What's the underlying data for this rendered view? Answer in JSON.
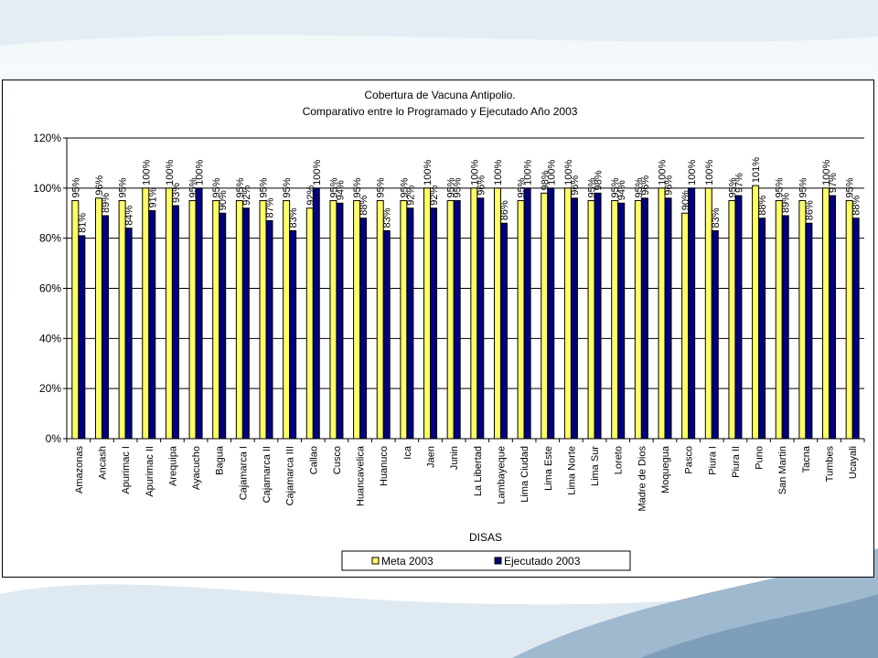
{
  "colors": {
    "meta": "#ffff66",
    "ejecutado": "#000080"
  },
  "chart_data": {
    "type": "bar",
    "title": "Cobertura de Vacuna Antipolio.",
    "subtitle": "Comparativo entre lo Programado y Ejecutado Año 2003",
    "xlabel": "DISAS",
    "ylabel": "",
    "ylim": [
      0,
      120
    ],
    "yticks": [
      "0%",
      "20%",
      "40%",
      "60%",
      "80%",
      "100%",
      "120%"
    ],
    "grid": true,
    "legend_position": "bottom",
    "categories": [
      "Amazonas",
      "Ancash",
      "Apurimac I",
      "Apurimac II",
      "Arequipa",
      "Ayacucho",
      "Bagua",
      "Cajamarca I",
      "Cajamarca II",
      "Cajamarca III",
      "Callao",
      "Cusco",
      "Huancavelica",
      "Huanuco",
      "Ica",
      "Jaen",
      "Junin",
      "La Libertad",
      "Lambayeque",
      "Lima Ciudad",
      "Lima Este",
      "Lima Norte",
      "Lima Sur",
      "Loreto",
      "Madre de Dios",
      "Moquegua",
      "Pasco",
      "Piura I",
      "Piura II",
      "Puno",
      "San Martin",
      "Tacna",
      "Tumbes",
      "Ucayali"
    ],
    "series": [
      {
        "name": "Meta 2003",
        "values": [
          95,
          96,
          95,
          100,
          100,
          95,
          95,
          95,
          95,
          95,
          92,
          95,
          95,
          95,
          95,
          100,
          95,
          100,
          100,
          95,
          98,
          100,
          95,
          95,
          95,
          100,
          90,
          100,
          95,
          101,
          95,
          95,
          100,
          95
        ],
        "labels": [
          "95%",
          "96%",
          "95%",
          "100%",
          "100%",
          "95%",
          "95%",
          "95%",
          "95%",
          "95%",
          "92%",
          "95%",
          "95%",
          "95%",
          "95%",
          "100%",
          "95%",
          "100%",
          "100%",
          "95%",
          "98%",
          "100%",
          "95%",
          "95%",
          "95%",
          "100%",
          "90%",
          "100%",
          "95%",
          "101%",
          "95%",
          "95%",
          "100%",
          "95%"
        ]
      },
      {
        "name": "Ejecutado 2003",
        "values": [
          81,
          89,
          84,
          91,
          93,
          100,
          90,
          92,
          87,
          83,
          100,
          94,
          88,
          83,
          92,
          92,
          95,
          96,
          86,
          100,
          100,
          96,
          98,
          94,
          96,
          96,
          100,
          83,
          97,
          88,
          89,
          86,
          97,
          88
        ],
        "labels": [
          "81%",
          "89%",
          "84%",
          "91%",
          "93%",
          "100%",
          "90%",
          "92%",
          "87%",
          "83%",
          "100%",
          "94%",
          "88%",
          "83%",
          "92%",
          "92%",
          "95%",
          "96%",
          "86%",
          "100%",
          "100%",
          "96%",
          "98%",
          "94%",
          "96%",
          "96%",
          "100%",
          "83%",
          "97%",
          "88%",
          "89%",
          "86%",
          "97%",
          "88%"
        ]
      }
    ]
  }
}
